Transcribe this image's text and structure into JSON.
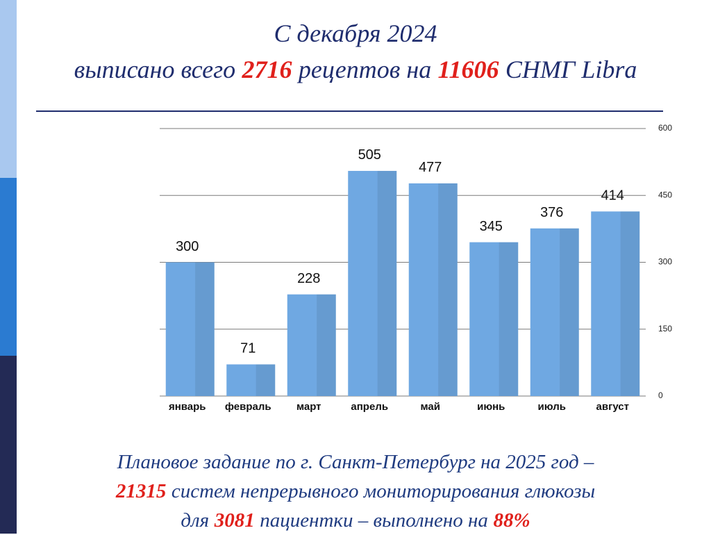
{
  "header": {
    "lines": [
      [
        {
          "text": "С декабря 2024"
        }
      ],
      [
        {
          "text": "выписано всего"
        },
        {
          "text": "2716",
          "emphasis": true
        },
        {
          "text": "рецептов на"
        },
        {
          "text": "11606",
          "emphasis": true
        },
        {
          "text": "СНМГ Libra"
        }
      ]
    ]
  },
  "chart_data": {
    "type": "bar",
    "categories": [
      "январь",
      "февраль",
      "март",
      "апрель",
      "май",
      "июнь",
      "июль",
      "август"
    ],
    "values": [
      300,
      71,
      228,
      505,
      477,
      345,
      376,
      414
    ],
    "color": "#6fa8e2",
    "ylim": [
      0,
      600
    ],
    "yticks": [
      0,
      150,
      300,
      450,
      600
    ],
    "grid": true,
    "y_axis_side": "right"
  },
  "footer": {
    "lines": [
      [
        {
          "text": "Плановое задание по г. Санкт-Петербург на 2025 год –"
        }
      ],
      [
        {
          "text": "21315",
          "emphasis": true
        },
        {
          "text": "систем непрерывного мониторирования глюкозы"
        }
      ],
      [
        {
          "text": "для"
        },
        {
          "text": "3081",
          "emphasis": true
        },
        {
          "text": "пациентки – выполнено на"
        },
        {
          "text": "88%",
          "emphasis": true
        }
      ]
    ]
  }
}
